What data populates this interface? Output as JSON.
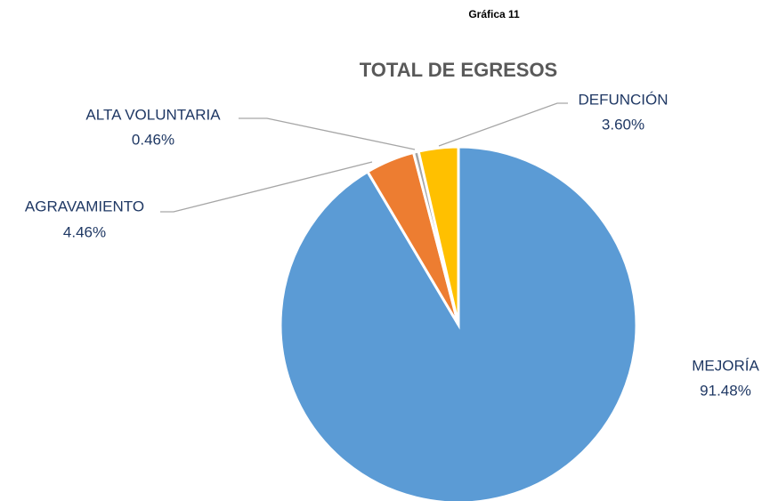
{
  "chart_data": {
    "type": "pie",
    "heading": "Gráfica 11",
    "title": "TOTAL DE EGRESOS",
    "categories": [
      "MEJORÍA",
      "AGRAVAMIENTO",
      "ALTA VOLUNTARIA",
      "DEFUNCIÓN"
    ],
    "values": [
      91.48,
      4.46,
      0.46,
      3.6
    ],
    "value_labels": [
      "91.48%",
      "4.46%",
      "0.46%",
      "3.60%"
    ],
    "colors": [
      "#5b9bd5",
      "#ed7d31",
      "#a5a5a5",
      "#ffc000"
    ]
  }
}
